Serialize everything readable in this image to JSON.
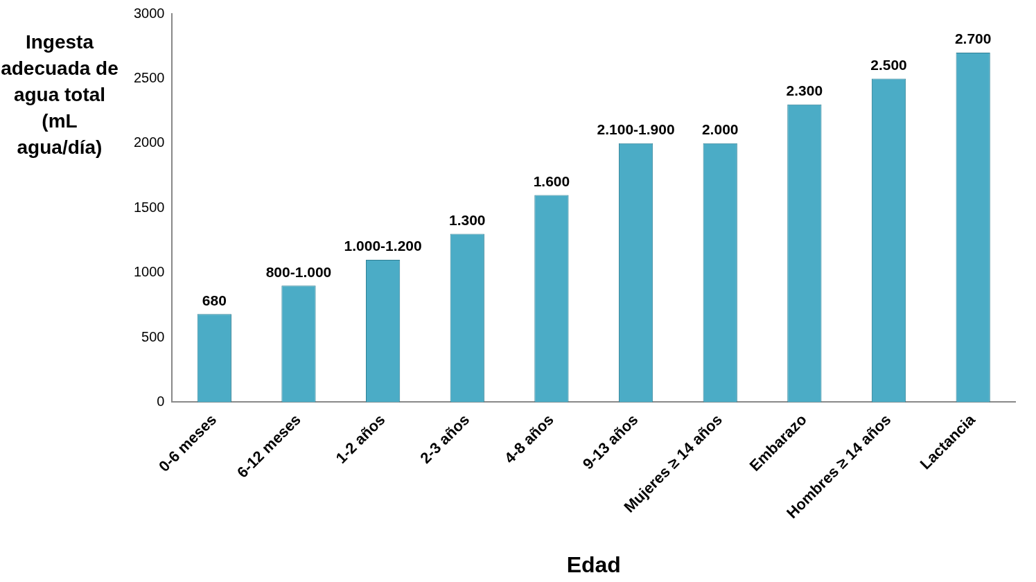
{
  "chart_data": {
    "type": "bar",
    "ylabel": "Ingesta adecuada de agua total (mL agua/día)",
    "xlabel": "Edad",
    "categories": [
      "0-6 meses",
      "6-12 meses",
      "1-2 años",
      "2-3 años",
      "4-8 años",
      "9-13 años",
      "Mujeres ≥ 14 años",
      "Embarazo",
      "Hombres ≥ 14 años",
      "Lactancia"
    ],
    "values": [
      680,
      900,
      1100,
      1300,
      1600,
      2000,
      2000,
      2300,
      2500,
      2700
    ],
    "value_labels": [
      "680",
      "800-1.000",
      "1.000-1.200",
      "1.300",
      "1.600",
      "2.100-1.900",
      "2.000",
      "2.300",
      "2.500",
      "2.700"
    ],
    "color": "#4bacc6",
    "ylim": [
      0,
      3000
    ],
    "yticks": [
      0,
      500,
      1000,
      1500,
      2000,
      2500,
      3000
    ],
    "grid": false
  }
}
